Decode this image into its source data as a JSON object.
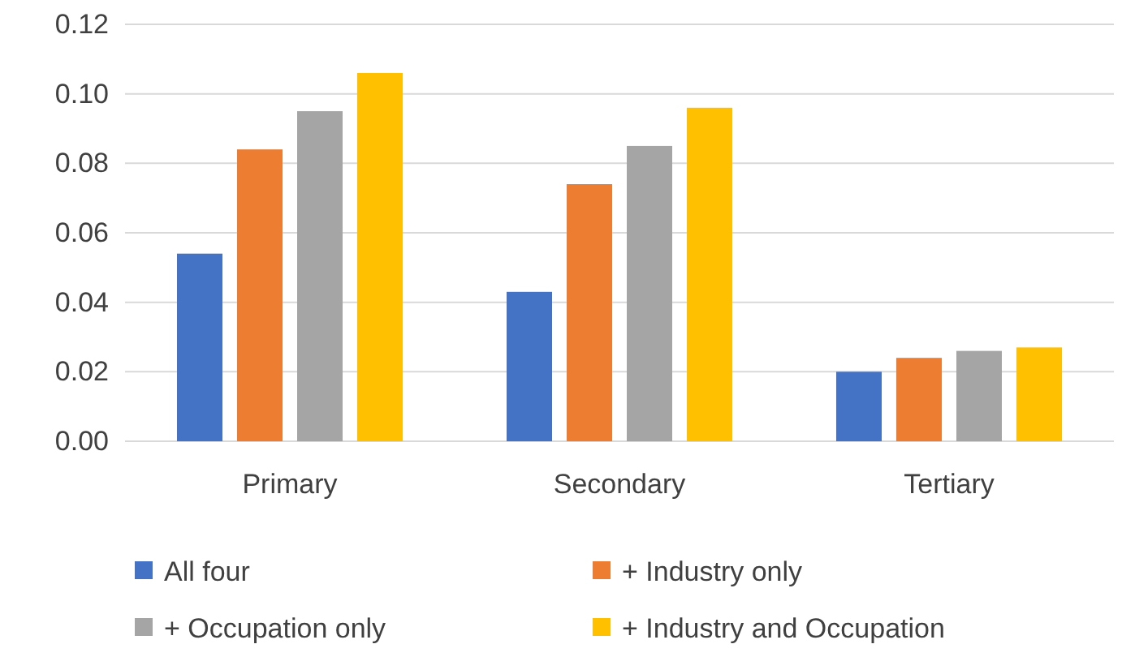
{
  "chart_data": {
    "type": "bar",
    "categories": [
      "Primary",
      "Secondary",
      "Tertiary"
    ],
    "series": [
      {
        "name": "All four",
        "color": "#4472c4",
        "values": [
          0.054,
          0.043,
          0.02
        ]
      },
      {
        "name": "+ Industry only",
        "color": "#ed7d31",
        "values": [
          0.084,
          0.074,
          0.024
        ]
      },
      {
        "name": "+ Occupation only",
        "color": "#a5a5a5",
        "values": [
          0.095,
          0.085,
          0.026
        ]
      },
      {
        "name": "+ Industry and Occupation",
        "color": "#ffc000",
        "values": [
          0.106,
          0.096,
          0.027
        ]
      }
    ],
    "ylim": [
      0,
      0.12
    ],
    "yticks": [
      {
        "value": 0,
        "label": "0.00"
      },
      {
        "value": 0.02,
        "label": "0.02"
      },
      {
        "value": 0.04,
        "label": "0.04"
      },
      {
        "value": 0.06,
        "label": "0.06"
      },
      {
        "value": 0.08,
        "label": "0.08"
      },
      {
        "value": 0.1,
        "label": "0.10"
      },
      {
        "value": 0.12,
        "label": "0.12"
      }
    ],
    "grid": "y",
    "legend": "bottom"
  }
}
